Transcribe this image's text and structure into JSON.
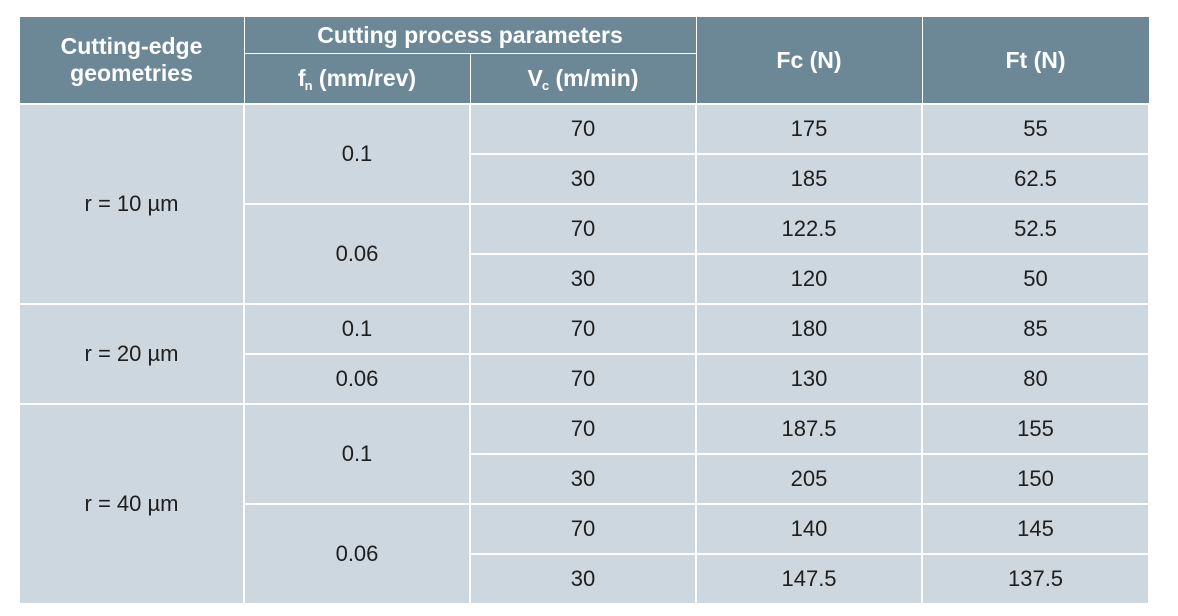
{
  "headers": {
    "geometry_line1": "Cutting-edge",
    "geometry_line2": "geometries",
    "process": "Cutting process parameters",
    "fn_base": "f",
    "fn_sub": "n",
    "fn_unit": " (mm/rev)",
    "vc_base": "V",
    "vc_sub": "c",
    "vc_unit": " (m/min)",
    "fc": "Fc (N)",
    "ft": "Ft (N)"
  },
  "groups": [
    {
      "geometry": "r = 10 µm",
      "feeds": [
        {
          "fn": "0.1",
          "rows": [
            {
              "vc": "70",
              "fc": "175",
              "ft": "55"
            },
            {
              "vc": "30",
              "fc": "185",
              "ft": "62.5"
            }
          ]
        },
        {
          "fn": "0.06",
          "rows": [
            {
              "vc": "70",
              "fc": "122.5",
              "ft": "52.5"
            },
            {
              "vc": "30",
              "fc": "120",
              "ft": "50"
            }
          ]
        }
      ]
    },
    {
      "geometry": "r = 20 µm",
      "feeds": [
        {
          "fn": "0.1",
          "rows": [
            {
              "vc": "70",
              "fc": "180",
              "ft": "85"
            }
          ]
        },
        {
          "fn": "0.06",
          "rows": [
            {
              "vc": "70",
              "fc": "130",
              "ft": "80"
            }
          ]
        }
      ]
    },
    {
      "geometry": "r = 40 µm",
      "feeds": [
        {
          "fn": "0.1",
          "rows": [
            {
              "vc": "70",
              "fc": "187.5",
              "ft": "155"
            },
            {
              "vc": "30",
              "fc": "205",
              "ft": "150"
            }
          ]
        },
        {
          "fn": "0.06",
          "rows": [
            {
              "vc": "70",
              "fc": "140",
              "ft": "145"
            },
            {
              "vc": "30",
              "fc": "147.5",
              "ft": "137.5"
            }
          ]
        }
      ]
    }
  ]
}
